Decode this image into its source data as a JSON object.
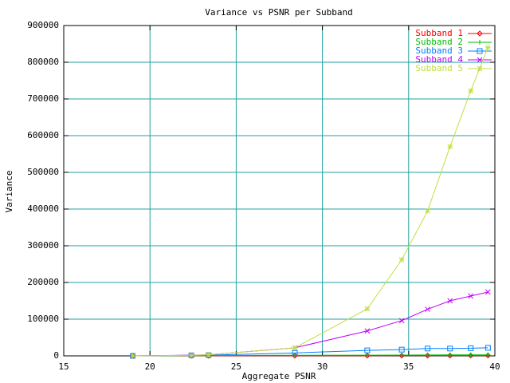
{
  "chart_data": {
    "type": "line",
    "title": "Variance vs PSNR per Subband",
    "x_label": "Aggregate PSNR",
    "y_label": "Variance",
    "x": [
      19.0,
      22.4,
      23.4,
      28.4,
      32.6,
      34.6,
      36.1,
      37.4,
      38.6,
      39.6
    ],
    "series": [
      {
        "name": "Subband 1",
        "color": "#ff0000",
        "marker": "diamond",
        "values": [
          0,
          200,
          300,
          500,
          600,
          700,
          800,
          800,
          900,
          900
        ]
      },
      {
        "name": "Subband 2",
        "color": "#00c000",
        "marker": "plus",
        "values": [
          0,
          500,
          700,
          1500,
          2000,
          2200,
          2500,
          2600,
          2700,
          2800
        ]
      },
      {
        "name": "Subband 3",
        "color": "#0080ff",
        "marker": "square",
        "values": [
          0,
          1500,
          2000,
          8000,
          15000,
          17000,
          20000,
          20000,
          21000,
          22000
        ]
      },
      {
        "name": "Subband 4",
        "color": "#c000ff",
        "marker": "cross",
        "values": [
          0,
          2000,
          3000,
          22000,
          68000,
          96000,
          127000,
          150000,
          163000,
          174000
        ]
      },
      {
        "name": "Subband 5",
        "color": "#c0e040",
        "marker": "star",
        "values": [
          0,
          1500,
          3000,
          22000,
          128000,
          262000,
          395000,
          570000,
          722000,
          840000
        ]
      }
    ],
    "xlim": [
      15,
      40
    ],
    "xticks": [
      15,
      20,
      25,
      30,
      35,
      40
    ],
    "ylim": [
      0,
      900000
    ],
    "yticks": [
      0,
      100000,
      200000,
      300000,
      400000,
      500000,
      600000,
      700000,
      800000,
      900000
    ],
    "grid": true,
    "grid_color": "#20a0a0",
    "legend": "top-right"
  }
}
